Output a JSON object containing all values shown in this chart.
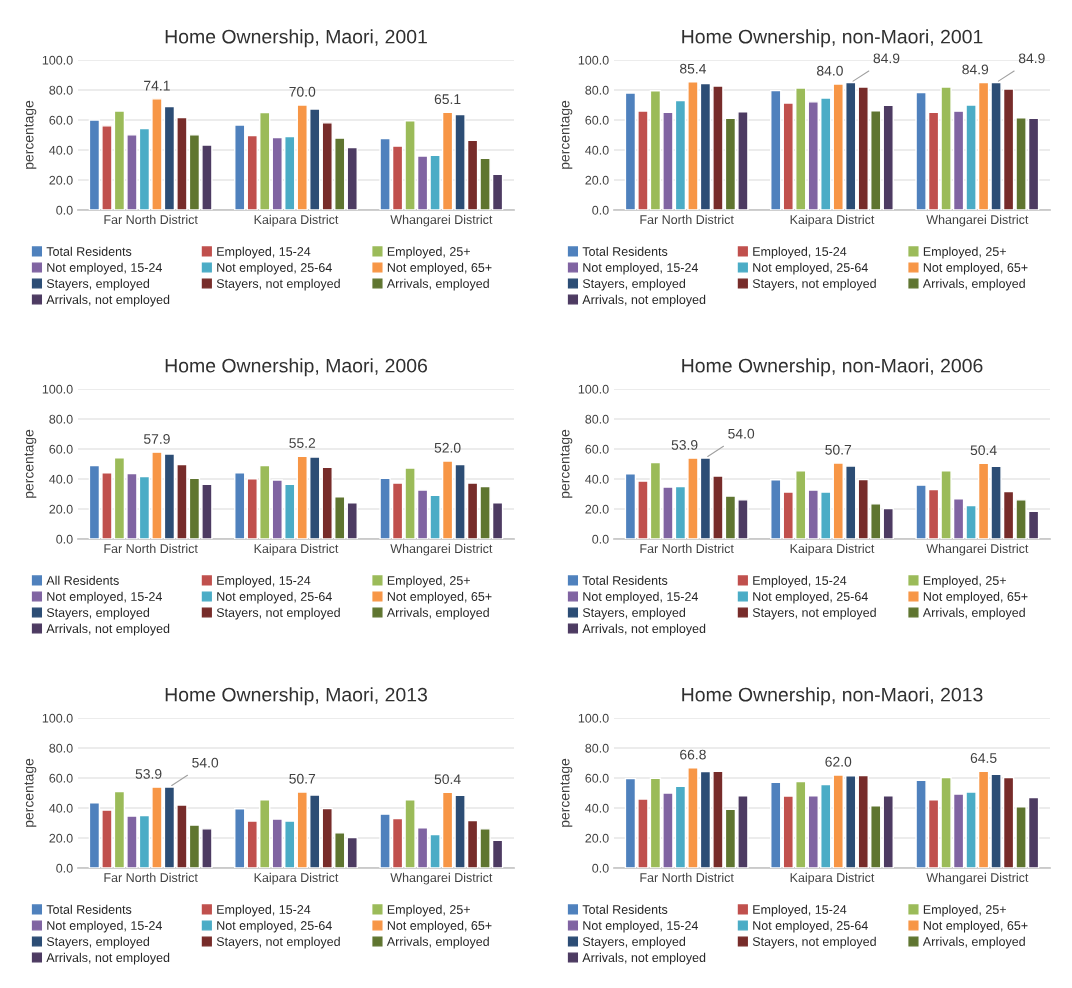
{
  "chart_data": [
    {
      "type": "bar",
      "title": "Home Ownership, Maori, 2001",
      "ylabel": "percentage",
      "categories": [
        "Far North District",
        "Kaipara District",
        "Whangarei District"
      ],
      "ylim": [
        0,
        100
      ],
      "yticks": [
        {
          "value": 0,
          "label": "0.0"
        },
        {
          "value": 20,
          "label": "20.0"
        },
        {
          "value": 40,
          "label": "40.0"
        },
        {
          "value": 60,
          "label": "60.0"
        },
        {
          "value": 80,
          "label": "80.0"
        },
        {
          "value": 100,
          "label": "100.0"
        }
      ],
      "grid": "y",
      "legend": "bottom",
      "series": [
        {
          "name": "Total Residents",
          "color": "#4f81bd",
          "values": [
            60.0,
            56.7,
            47.7
          ]
        },
        {
          "name": "Employed, 15-24",
          "color": "#c0504d",
          "values": [
            56.1,
            49.7,
            42.6
          ]
        },
        {
          "name": "Employed, 25+",
          "color": "#9bbb59",
          "values": [
            66.0,
            64.9,
            59.4
          ]
        },
        {
          "name": "Not employed, 15-24",
          "color": "#8064a2",
          "values": [
            50.1,
            48.3,
            36.0
          ]
        },
        {
          "name": "Not employed, 25-64",
          "color": "#4bacc6",
          "values": [
            54.3,
            49.0,
            36.4
          ]
        },
        {
          "name": "Not employed, 65+",
          "color": "#f79646",
          "values": [
            74.1,
            70.0,
            65.1
          ],
          "value_labels": [
            "74.1",
            "70.0",
            "65.1"
          ]
        },
        {
          "name": "Stayers, employed",
          "color": "#2c4d75",
          "values": [
            68.9,
            67.3,
            63.6
          ]
        },
        {
          "name": "Stayers, not employed",
          "color": "#772c2a",
          "values": [
            61.6,
            58.1,
            46.4
          ]
        },
        {
          "name": "Arrivals, employed",
          "color": "#5f7530",
          "values": [
            50.1,
            47.9,
            34.4
          ]
        },
        {
          "name": "Arrivals, not employed",
          "color": "#4d3b62",
          "values": [
            43.3,
            41.7,
            23.8
          ]
        }
      ]
    },
    {
      "type": "bar",
      "title": "Home Ownership, non-Maori, 2001",
      "ylabel": "percentage",
      "categories": [
        "Far North District",
        "Kaipara District",
        "Whangarei District"
      ],
      "ylim": [
        0,
        100
      ],
      "yticks": [
        {
          "value": 0,
          "label": "0.0"
        },
        {
          "value": 20,
          "label": "20.0"
        },
        {
          "value": 40,
          "label": "40.0"
        },
        {
          "value": 60,
          "label": "60.0"
        },
        {
          "value": 80,
          "label": "80.0"
        },
        {
          "value": 100,
          "label": "100.0"
        }
      ],
      "grid": "y",
      "legend": "bottom",
      "series": [
        {
          "name": "Total Residents",
          "color": "#4f81bd",
          "values": [
            78.0,
            79.6,
            78.3
          ]
        },
        {
          "name": "Employed, 15-24",
          "color": "#c0504d",
          "values": [
            66.0,
            71.3,
            65.1
          ]
        },
        {
          "name": "Employed, 25+",
          "color": "#9bbb59",
          "values": [
            79.5,
            81.3,
            82.0
          ]
        },
        {
          "name": "Not employed, 15-24",
          "color": "#8064a2",
          "values": [
            65.2,
            72.1,
            65.9
          ]
        },
        {
          "name": "Not employed, 25-64",
          "color": "#4bacc6",
          "values": [
            73.0,
            74.7,
            70.0
          ]
        },
        {
          "name": "Not employed, 65+",
          "color": "#f79646",
          "values": [
            85.4,
            84.0,
            84.9
          ],
          "value_labels": [
            "85.4",
            "84.0",
            "84.9"
          ]
        },
        {
          "name": "Stayers, employed",
          "color": "#2c4d75",
          "values": [
            84.3,
            84.9,
            84.9
          ],
          "value_labels": [
            null,
            "84.9",
            "84.9"
          ]
        },
        {
          "name": "Stayers, not employed",
          "color": "#772c2a",
          "values": [
            82.6,
            82.0,
            80.6
          ]
        },
        {
          "name": "Arrivals, employed",
          "color": "#5f7530",
          "values": [
            61.1,
            66.2,
            61.5
          ]
        },
        {
          "name": "Arrivals, not employed",
          "color": "#4d3b62",
          "values": [
            65.5,
            69.8,
            61.1
          ]
        }
      ]
    },
    {
      "type": "bar",
      "title": "Home Ownership, Maori, 2006",
      "ylabel": "percentage",
      "categories": [
        "Far North District",
        "Kaipara District",
        "Whangarei District"
      ],
      "ylim": [
        0,
        100
      ],
      "yticks": [
        {
          "value": 0,
          "label": "0.0"
        },
        {
          "value": 20,
          "label": "20.0"
        },
        {
          "value": 40,
          "label": "40.0"
        },
        {
          "value": 60,
          "label": "60.0"
        },
        {
          "value": 80,
          "label": "80.0"
        },
        {
          "value": 100,
          "label": "100.0"
        }
      ],
      "grid": "y",
      "legend": "bottom",
      "series": [
        {
          "name": "All Residents",
          "color": "#4f81bd",
          "values": [
            48.9,
            44.2,
            40.4
          ]
        },
        {
          "name": "Employed, 15-24",
          "color": "#c0504d",
          "values": [
            44.2,
            40.2,
            37.3
          ]
        },
        {
          "name": "Employed, 25+",
          "color": "#9bbb59",
          "values": [
            54.2,
            48.9,
            47.3
          ]
        },
        {
          "name": "Not employed, 15-24",
          "color": "#8064a2",
          "values": [
            43.6,
            39.3,
            32.7
          ]
        },
        {
          "name": "Not employed, 25-64",
          "color": "#4bacc6",
          "values": [
            41.6,
            36.4,
            29.1
          ]
        },
        {
          "name": "Not employed, 65+",
          "color": "#f79646",
          "values": [
            57.9,
            55.2,
            52.0
          ],
          "value_labels": [
            "57.9",
            "55.2",
            "52.0"
          ]
        },
        {
          "name": "Stayers, employed",
          "color": "#2c4d75",
          "values": [
            56.7,
            54.7,
            49.6
          ]
        },
        {
          "name": "Stayers, not employed",
          "color": "#772c2a",
          "values": [
            49.6,
            47.8,
            37.3
          ]
        },
        {
          "name": "Arrivals, employed",
          "color": "#5f7530",
          "values": [
            40.4,
            28.2,
            34.9
          ]
        },
        {
          "name": "Arrivals, not employed",
          "color": "#4d3b62",
          "values": [
            36.4,
            24.2,
            24.2
          ]
        }
      ]
    },
    {
      "type": "bar",
      "title": "Home Ownership, non-Maori, 2006",
      "ylabel": "percentage",
      "categories": [
        "Far North District",
        "Kaipara District",
        "Whangarei District"
      ],
      "ylim": [
        0,
        100
      ],
      "yticks": [
        {
          "value": 0,
          "label": "0.0"
        },
        {
          "value": 20,
          "label": "20.0"
        },
        {
          "value": 40,
          "label": "40.0"
        },
        {
          "value": 60,
          "label": "60.0"
        },
        {
          "value": 80,
          "label": "80.0"
        },
        {
          "value": 100,
          "label": "100.0"
        }
      ],
      "grid": "y",
      "legend": "bottom",
      "series": [
        {
          "name": "Total Residents",
          "color": "#4f81bd",
          "values": [
            43.5,
            39.5,
            35.9
          ]
        },
        {
          "name": "Employed, 15-24",
          "color": "#c0504d",
          "values": [
            38.6,
            31.3,
            33.0
          ]
        },
        {
          "name": "Employed, 25+",
          "color": "#9bbb59",
          "values": [
            50.9,
            45.5,
            45.5
          ]
        },
        {
          "name": "Not employed, 15-24",
          "color": "#8064a2",
          "values": [
            34.6,
            32.6,
            26.8
          ]
        },
        {
          "name": "Not employed, 25-64",
          "color": "#4bacc6",
          "values": [
            35.0,
            31.3,
            22.3
          ]
        },
        {
          "name": "Not employed, 65+",
          "color": "#f79646",
          "values": [
            53.9,
            50.7,
            50.4
          ],
          "value_labels": [
            "53.9",
            "50.7",
            "50.4"
          ]
        },
        {
          "name": "Stayers, employed",
          "color": "#2c4d75",
          "values": [
            54.0,
            48.7,
            48.4
          ],
          "value_labels": [
            "54.0",
            null,
            null
          ]
        },
        {
          "name": "Stayers, not employed",
          "color": "#772c2a",
          "values": [
            42.0,
            39.7,
            31.7
          ]
        },
        {
          "name": "Arrivals, employed",
          "color": "#5f7530",
          "values": [
            28.6,
            23.4,
            26.1
          ]
        },
        {
          "name": "Arrivals, not employed",
          "color": "#4d3b62",
          "values": [
            26.1,
            20.3,
            18.5
          ]
        }
      ]
    },
    {
      "type": "bar",
      "title": "Home Ownership, Maori, 2013",
      "ylabel": "percentage",
      "categories": [
        "Far North District",
        "Kaipara District",
        "Whangarei District"
      ],
      "ylim": [
        0,
        100
      ],
      "yticks": [
        {
          "value": 0,
          "label": "0.0"
        },
        {
          "value": 20,
          "label": "20.0"
        },
        {
          "value": 40,
          "label": "40.0"
        },
        {
          "value": 60,
          "label": "60.0"
        },
        {
          "value": 80,
          "label": "80.0"
        },
        {
          "value": 100,
          "label": "100.0"
        }
      ],
      "grid": "y",
      "legend": "bottom",
      "series": [
        {
          "name": "Total Residents",
          "color": "#4f81bd",
          "values": [
            43.5,
            39.5,
            35.9
          ]
        },
        {
          "name": "Employed, 15-24",
          "color": "#c0504d",
          "values": [
            38.6,
            31.3,
            33.0
          ]
        },
        {
          "name": "Employed, 25+",
          "color": "#9bbb59",
          "values": [
            50.9,
            45.5,
            45.5
          ]
        },
        {
          "name": "Not employed, 15-24",
          "color": "#8064a2",
          "values": [
            34.6,
            32.6,
            26.8
          ]
        },
        {
          "name": "Not employed, 25-64",
          "color": "#4bacc6",
          "values": [
            35.0,
            31.3,
            22.3
          ]
        },
        {
          "name": "Not employed, 65+",
          "color": "#f79646",
          "values": [
            53.9,
            50.7,
            50.4
          ],
          "value_labels": [
            "53.9",
            "50.7",
            "50.4"
          ]
        },
        {
          "name": "Stayers, employed",
          "color": "#2c4d75",
          "values": [
            54.0,
            48.7,
            48.4
          ],
          "value_labels": [
            "54.0",
            null,
            null
          ]
        },
        {
          "name": "Stayers, not employed",
          "color": "#772c2a",
          "values": [
            42.0,
            39.7,
            31.7
          ]
        },
        {
          "name": "Arrivals, employed",
          "color": "#5f7530",
          "values": [
            28.6,
            23.4,
            26.1
          ]
        },
        {
          "name": "Arrivals, not employed",
          "color": "#4d3b62",
          "values": [
            26.1,
            20.3,
            18.5
          ]
        }
      ]
    },
    {
      "type": "bar",
      "title": "Home Ownership, non-Maori, 2013",
      "ylabel": "percentage",
      "categories": [
        "Far North District",
        "Kaipara District",
        "Whangarei District"
      ],
      "ylim": [
        0,
        100
      ],
      "yticks": [
        {
          "value": 0,
          "label": "0.0"
        },
        {
          "value": 20,
          "label": "20.0"
        },
        {
          "value": 40,
          "label": "40.0"
        },
        {
          "value": 60,
          "label": "60.0"
        },
        {
          "value": 80,
          "label": "80.0"
        },
        {
          "value": 100,
          "label": "100.0"
        }
      ],
      "grid": "y",
      "legend": "bottom",
      "series": [
        {
          "name": "Total Residents",
          "color": "#4f81bd",
          "values": [
            59.6,
            57.1,
            58.5
          ]
        },
        {
          "name": "Employed, 15-24",
          "color": "#c0504d",
          "values": [
            46.0,
            48.0,
            45.5
          ]
        },
        {
          "name": "Employed, 25+",
          "color": "#9bbb59",
          "values": [
            59.8,
            57.6,
            60.3
          ]
        },
        {
          "name": "Not employed, 15-24",
          "color": "#8064a2",
          "values": [
            50.0,
            48.2,
            49.3
          ]
        },
        {
          "name": "Not employed, 25-64",
          "color": "#4bacc6",
          "values": [
            54.5,
            55.6,
            50.7
          ]
        },
        {
          "name": "Not employed, 65+",
          "color": "#f79646",
          "values": [
            66.8,
            62.0,
            64.5
          ],
          "value_labels": [
            "66.8",
            "62.0",
            "64.5"
          ]
        },
        {
          "name": "Stayers, employed",
          "color": "#2c4d75",
          "values": [
            64.3,
            61.4,
            62.5
          ]
        },
        {
          "name": "Stayers, not employed",
          "color": "#772c2a",
          "values": [
            64.5,
            61.6,
            60.3
          ]
        },
        {
          "name": "Arrivals, employed",
          "color": "#5f7530",
          "values": [
            39.1,
            41.5,
            40.8
          ]
        },
        {
          "name": "Arrivals, not employed",
          "color": "#4d3b62",
          "values": [
            48.2,
            48.2,
            46.9
          ]
        }
      ]
    }
  ]
}
